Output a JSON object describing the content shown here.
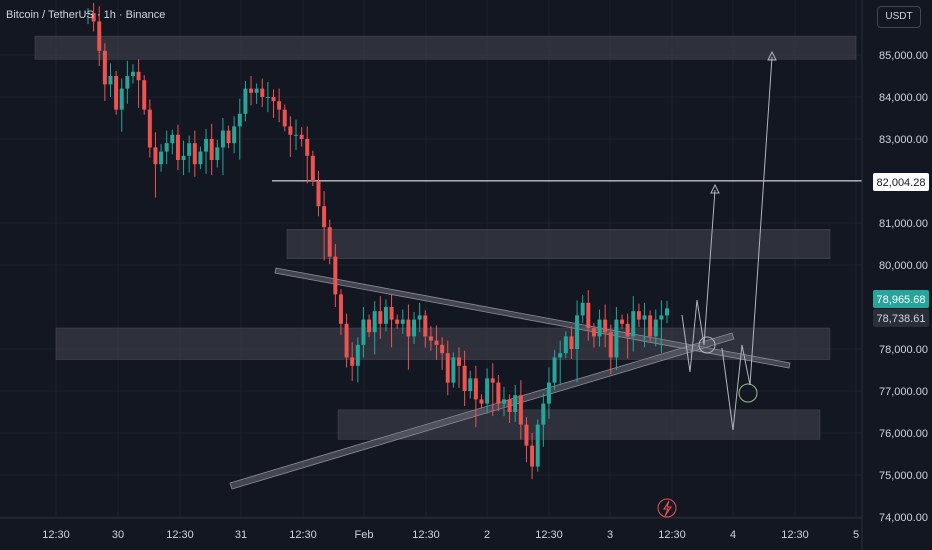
{
  "header": {
    "symbol_title": "Bitcoin / TetherUS · 1h · Binance",
    "currency": "USDT"
  },
  "price_axis": {
    "ticks": [
      "85,000.00",
      "84,000.00",
      "83,000.00",
      "81,000.00",
      "80,000.00",
      "78,000.00",
      "77,000.00",
      "76,000.00",
      "75,000.00",
      "74,000.00"
    ],
    "price_labels": [
      {
        "text": "82,004.28",
        "bg": "#ffffff",
        "fg": "#131722"
      },
      {
        "text": "78,965.68",
        "bg": "#26a69a",
        "fg": "#ffffff"
      },
      {
        "text": "78,738.61",
        "bg": "#2a2e39",
        "fg": "#d1d4dc"
      }
    ]
  },
  "time_axis": {
    "labels": [
      "12:30",
      "30",
      "12:30",
      "31",
      "12:30",
      "Feb",
      "12:30",
      "2",
      "12:30",
      "3",
      "12:30",
      "4",
      "12:30",
      "5"
    ]
  },
  "colors": {
    "up": "#26a69a",
    "down": "#ef5350",
    "background": "#131722",
    "zone": "#3a3d47",
    "grid": "#1e222d"
  },
  "chart_data": {
    "type": "candlestick",
    "interval": "1h",
    "symbol": "BTCUSDT",
    "ylim": [
      74000,
      85500
    ],
    "zones": [
      [
        84900,
        85450
      ],
      [
        80150,
        80850
      ],
      [
        77750,
        78500
      ],
      [
        75850,
        76550
      ]
    ],
    "horizontal_level": 82004.28,
    "series": [
      {
        "name": "close",
        "values": [
          86000,
          85800,
          85100,
          84300,
          84500,
          83700,
          84200,
          84500,
          84600,
          84400,
          83700,
          82800,
          82400,
          82700,
          82900,
          83100,
          82500,
          82600,
          82900,
          82400,
          82700,
          83000,
          82500,
          82800,
          83200,
          82900,
          83300,
          83600,
          84200,
          84100,
          84200,
          84000,
          84000,
          83900,
          83700,
          83300,
          83100,
          83100,
          83000,
          82600,
          82000,
          81400,
          80900,
          80200,
          79300,
          78600,
          77800,
          77600,
          78100,
          78700,
          78400,
          78900,
          78600,
          79000,
          78700,
          78600,
          78700,
          78300,
          78700,
          78800,
          78300,
          78200,
          78100,
          77900,
          77200,
          77800,
          77600,
          77000,
          77300,
          76800,
          76700,
          77300,
          77200,
          76700,
          76800,
          76500,
          76900,
          76200,
          75700,
          75200,
          76200,
          76700,
          77200,
          77800,
          77900,
          78300,
          78000,
          78800,
          79100,
          78500,
          78300,
          78700,
          78400,
          77800,
          78700,
          78600,
          78300,
          78900,
          78700,
          78800,
          78300,
          78700,
          78800,
          78966
        ]
      }
    ]
  }
}
